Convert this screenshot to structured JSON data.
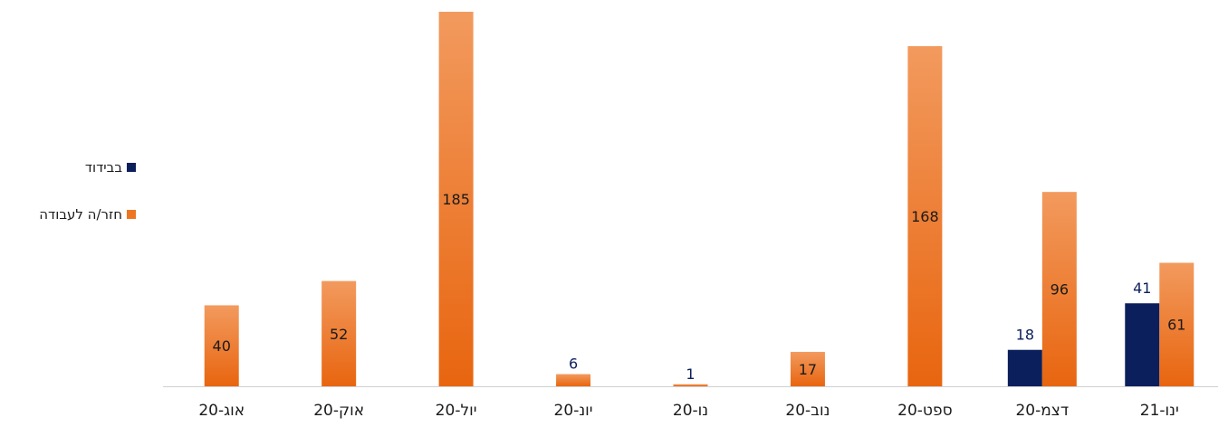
{
  "chart_data": {
    "type": "bar",
    "categories": [
      "אוג-20",
      "אוק-20",
      "יול-20",
      "יונ-20",
      "נו-20",
      "נוב-20",
      "ספט-20",
      "דצמ-20",
      "ינו-21"
    ],
    "series": [
      {
        "name": "בבידוד",
        "values": [
          null,
          null,
          null,
          null,
          null,
          null,
          null,
          18,
          41
        ],
        "color": "#0b1f5c"
      },
      {
        "name": "חזר/ה לעבודה",
        "values": [
          40,
          52,
          185,
          6,
          1,
          17,
          168,
          96,
          61
        ],
        "color": "#ee7623"
      }
    ],
    "ylim": [
      0,
      190
    ],
    "grid": false,
    "legend_position": "left"
  }
}
